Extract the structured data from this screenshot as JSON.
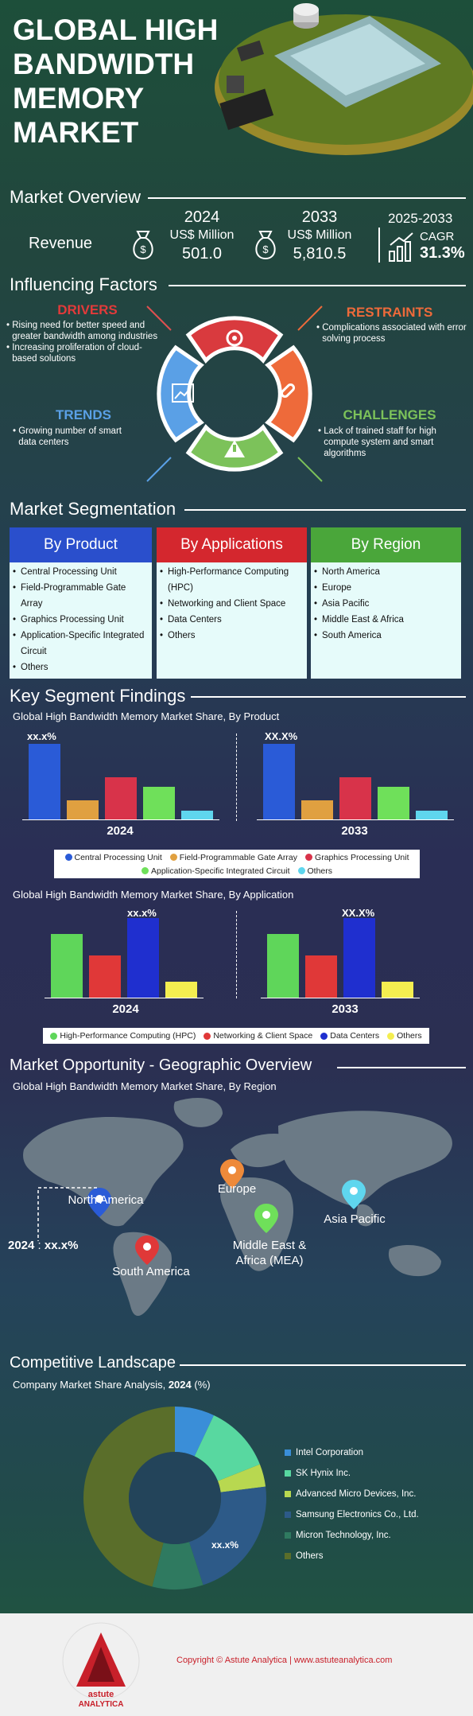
{
  "header": {
    "title": "GLOBAL HIGH BANDWIDTH MEMORY MARKET"
  },
  "overview": {
    "heading": "Market Overview",
    "revenue_label": "Revenue",
    "y1": {
      "year": "2024",
      "unit": "US$ Million",
      "value": "501.0"
    },
    "y2": {
      "year": "2033",
      "unit": "US$ Million",
      "value": "5,810.5"
    },
    "cagr": {
      "period": "2025-2033",
      "label": "CAGR",
      "value": "31.3%"
    }
  },
  "factors": {
    "heading": "Influencing Factors",
    "drivers": {
      "title": "DRIVERS",
      "items": [
        "Rising need for better speed and greater bandwidth among industries",
        "Increasing proliferation of cloud-based solutions"
      ]
    },
    "restraints": {
      "title": "RESTRAINTS",
      "items": [
        "Complications associated with error solving process"
      ]
    },
    "trends": {
      "title": "TRENDS",
      "items": [
        "Growing number of smart data centers"
      ]
    },
    "challenges": {
      "title": "CHALLENGES",
      "items": [
        "Lack of trained staff for high compute system and smart algorithms"
      ]
    },
    "colors": {
      "drivers": "#d93a3e",
      "restraints": "#ee6a3a",
      "trends": "#5aa0e6",
      "challenges": "#7cc25a"
    }
  },
  "segmentation": {
    "heading": "Market Segmentation",
    "product": {
      "title": "By Product",
      "items": [
        "Central Processing Unit",
        "Field-Programmable Gate Array",
        "Graphics Processing Unit",
        "Application-Specific Integrated Circuit",
        "Others"
      ]
    },
    "applications": {
      "title": "By Applications",
      "items": [
        "High-Performance Computing (HPC)",
        "Networking and Client Space",
        "Data Centers",
        "Others"
      ]
    },
    "region": {
      "title": "By Region",
      "items": [
        "North America",
        "Europe",
        "Asia Pacific",
        "Middle East & Africa",
        "South America"
      ]
    }
  },
  "findings": {
    "heading": "Key Segment Findings",
    "product_chart_title": "Global High Bandwidth Memory Market Share, By Product",
    "application_chart_title": "Global High Bandwidth Memory Market Share, By Application",
    "placeholder": "xx.x%",
    "placeholder_alt": "XX.X%",
    "year1": "2024",
    "year2": "2033"
  },
  "chart_data": [
    {
      "type": "bar",
      "title": "Global High Bandwidth Memory Market Share, By Product",
      "categories": [
        "2024",
        "2033"
      ],
      "series": [
        {
          "name": "Central Processing Unit",
          "color": "#2a5bd7",
          "values": [
            100,
            100
          ]
        },
        {
          "name": "Field-Programmable Gate Array",
          "color": "#e0a040",
          "values": [
            25,
            25
          ]
        },
        {
          "name": "Graphics Processing Unit",
          "color": "#d8334a",
          "values": [
            56,
            56
          ]
        },
        {
          "name": "Application-Specific Integrated Circuit",
          "color": "#6fe05a",
          "values": [
            43,
            43
          ]
        },
        {
          "name": "Others",
          "color": "#5fd6ee",
          "values": [
            12,
            12
          ]
        }
      ]
    },
    {
      "type": "bar",
      "title": "Global High Bandwidth Memory Market Share, By Application",
      "categories": [
        "2024",
        "2033"
      ],
      "series": [
        {
          "name": "High-Performance Computing (HPC)",
          "color": "#5fd65a",
          "values": [
            80,
            80
          ]
        },
        {
          "name": "Networking & Client Space",
          "color": "#e03838",
          "values": [
            53,
            53
          ]
        },
        {
          "name": "Data Centers",
          "color": "#1f2fcf",
          "values": [
            100,
            100
          ]
        },
        {
          "name": "Others",
          "color": "#f4ee50",
          "values": [
            20,
            20
          ]
        }
      ]
    },
    {
      "type": "pie",
      "title": "Company Market Share Analysis, 2024 (%)",
      "categories": [
        "Intel Corporation",
        "SK Hynix Inc.",
        "Advanced Micro Devices, Inc.",
        "Samsung Electronics Co., Ltd.",
        "Micron Technology, Inc.",
        "Others"
      ],
      "values": [
        7,
        12,
        4,
        22,
        9,
        46
      ],
      "colors": [
        "#3a8ed8",
        "#58d8a0",
        "#b8d850",
        "#2d5a88",
        "#2f7a60",
        "#5a6e2a"
      ]
    }
  ],
  "geo": {
    "heading": "Market Opportunity - Geographic Overview",
    "subtitle": "Global High Bandwidth Memory Market Share, By Region",
    "regions": [
      "North America",
      "Europe",
      "Asia Pacific",
      "Middle East & Africa (MEA)",
      "South America"
    ],
    "callout_year": "2024",
    "callout_sep": ":",
    "callout_value": "xx.x%"
  },
  "competitive": {
    "heading": "Competitive Landscape",
    "subtitle_a": "Company Market Share Analysis,",
    "subtitle_year": "2024",
    "subtitle_b": "(%)",
    "label": "xx.x%"
  },
  "footer": {
    "copyright": "Copyright © Astute Analytica  |  www.astuteanalytica.com",
    "logo_top": "Powered by Data | Guided by Intelligence",
    "logo_name": "astute",
    "logo_sub": "ANALYTICA"
  }
}
